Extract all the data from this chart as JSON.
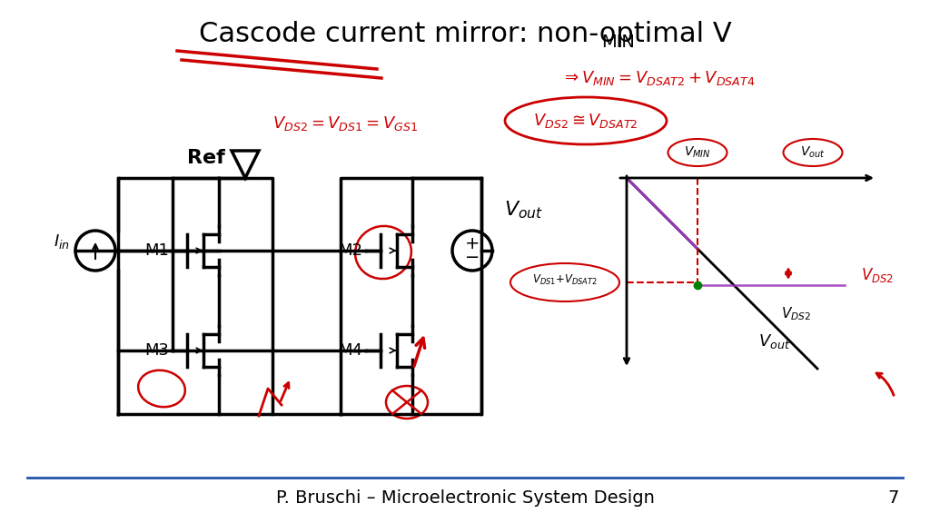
{
  "title": "Cascode current mirror: non-optimal V",
  "title_sub": "MIN",
  "footer": "P. Bruschi – Microelectronic System Design",
  "page_num": "7",
  "bg_color": "#ffffff",
  "text_color": "#000000",
  "red_color": "#cc0000"
}
